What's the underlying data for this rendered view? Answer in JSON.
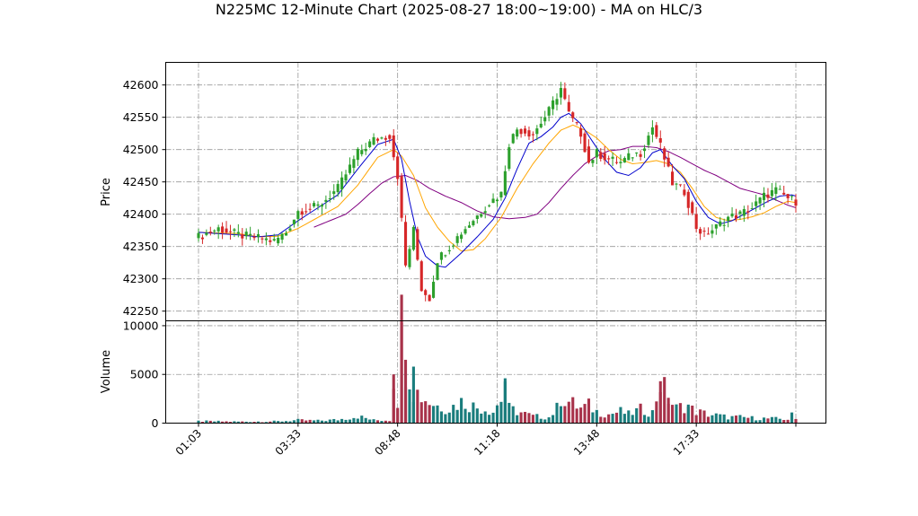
{
  "chart_data": {
    "type": "candlestick",
    "title": "N225MC 12-Minute Chart (2025-08-27 18:00~19:00) - MA on HLC/3",
    "xlabel": "",
    "price_panel": {
      "ylabel": "Price",
      "ylim": [
        42235,
        42635
      ],
      "yticks": [
        42250,
        42300,
        42350,
        42400,
        42450,
        42500,
        42550,
        42600
      ],
      "grid": true
    },
    "volume_panel": {
      "ylabel": "Volume",
      "ylim": [
        0,
        10500
      ],
      "yticks": [
        0,
        5000,
        10000
      ],
      "grid": true
    },
    "xticks": [
      "01:03",
      "03:33",
      "08:48",
      "11:18",
      "13:48",
      "17:33"
    ],
    "xtick_positions": [
      0,
      25,
      50,
      75,
      100,
      125
    ],
    "bar_count": 151,
    "colors": {
      "up": "#2ca02c",
      "down": "#d62728",
      "vol_up": "#1a7d7d",
      "vol_down": "#a8324a",
      "ma_fast": "#0000cc",
      "ma_mid": "#ffa500",
      "ma_slow": "#800080",
      "grid": "#999999"
    },
    "close_anchors": [
      [
        0,
        42365
      ],
      [
        5,
        42378
      ],
      [
        10,
        42368
      ],
      [
        16,
        42362
      ],
      [
        19,
        42358
      ],
      [
        22,
        42372
      ],
      [
        25,
        42405
      ],
      [
        30,
        42412
      ],
      [
        35,
        42440
      ],
      [
        40,
        42495
      ],
      [
        44,
        42515
      ],
      [
        48,
        42522
      ],
      [
        50,
        42460
      ],
      [
        52,
        42320
      ],
      [
        54,
        42375
      ],
      [
        56,
        42285
      ],
      [
        58,
        42270
      ],
      [
        60,
        42330
      ],
      [
        63,
        42350
      ],
      [
        66,
        42372
      ],
      [
        70,
        42398
      ],
      [
        73,
        42418
      ],
      [
        76,
        42432
      ],
      [
        78,
        42510
      ],
      [
        80,
        42532
      ],
      [
        84,
        42524
      ],
      [
        88,
        42560
      ],
      [
        91,
        42595
      ],
      [
        93,
        42555
      ],
      [
        96,
        42525
      ],
      [
        98,
        42480
      ],
      [
        100,
        42495
      ],
      [
        103,
        42485
      ],
      [
        106,
        42480
      ],
      [
        109,
        42492
      ],
      [
        111,
        42495
      ],
      [
        114,
        42535
      ],
      [
        116,
        42505
      ],
      [
        119,
        42448
      ],
      [
        122,
        42435
      ],
      [
        125,
        42380
      ],
      [
        127,
        42368
      ],
      [
        130,
        42380
      ],
      [
        133,
        42395
      ],
      [
        136,
        42400
      ],
      [
        139,
        42410
      ],
      [
        142,
        42428
      ],
      [
        145,
        42437
      ],
      [
        148,
        42425
      ],
      [
        150,
        42420
      ]
    ],
    "ma_fast_anchors": [
      [
        0,
        42372
      ],
      [
        10,
        42368
      ],
      [
        15,
        42365
      ],
      [
        20,
        42368
      ],
      [
        25,
        42390
      ],
      [
        30,
        42410
      ],
      [
        35,
        42430
      ],
      [
        40,
        42470
      ],
      [
        45,
        42508
      ],
      [
        49,
        42516
      ],
      [
        51,
        42485
      ],
      [
        53,
        42420
      ],
      [
        55,
        42365
      ],
      [
        57,
        42335
      ],
      [
        60,
        42320
      ],
      [
        62,
        42318
      ],
      [
        66,
        42340
      ],
      [
        70,
        42365
      ],
      [
        74,
        42392
      ],
      [
        77,
        42425
      ],
      [
        80,
        42470
      ],
      [
        83,
        42510
      ],
      [
        86,
        42520
      ],
      [
        89,
        42535
      ],
      [
        91,
        42550
      ],
      [
        93,
        42556
      ],
      [
        96,
        42540
      ],
      [
        99,
        42512
      ],
      [
        102,
        42485
      ],
      [
        105,
        42465
      ],
      [
        108,
        42460
      ],
      [
        111,
        42472
      ],
      [
        114,
        42495
      ],
      [
        116,
        42500
      ],
      [
        119,
        42475
      ],
      [
        122,
        42455
      ],
      [
        125,
        42420
      ],
      [
        128,
        42395
      ],
      [
        131,
        42385
      ],
      [
        134,
        42390
      ],
      [
        137,
        42400
      ],
      [
        140,
        42410
      ],
      [
        143,
        42420
      ],
      [
        146,
        42428
      ],
      [
        149,
        42430
      ],
      [
        150,
        42428
      ]
    ],
    "ma_mid_anchors": [
      [
        0,
        42372
      ],
      [
        10,
        42370
      ],
      [
        15,
        42365
      ],
      [
        20,
        42366
      ],
      [
        25,
        42378
      ],
      [
        30,
        42395
      ],
      [
        35,
        42412
      ],
      [
        40,
        42445
      ],
      [
        45,
        42488
      ],
      [
        49,
        42500
      ],
      [
        51,
        42490
      ],
      [
        54,
        42460
      ],
      [
        57,
        42410
      ],
      [
        60,
        42380
      ],
      [
        63,
        42358
      ],
      [
        66,
        42343
      ],
      [
        69,
        42345
      ],
      [
        72,
        42362
      ],
      [
        76,
        42395
      ],
      [
        80,
        42440
      ],
      [
        84,
        42478
      ],
      [
        88,
        42510
      ],
      [
        91,
        42530
      ],
      [
        94,
        42538
      ],
      [
        97,
        42530
      ],
      [
        100,
        42518
      ],
      [
        103,
        42500
      ],
      [
        106,
        42485
      ],
      [
        109,
        42478
      ],
      [
        112,
        42480
      ],
      [
        115,
        42483
      ],
      [
        118,
        42478
      ],
      [
        121,
        42465
      ],
      [
        124,
        42440
      ],
      [
        127,
        42412
      ],
      [
        130,
        42395
      ],
      [
        133,
        42390
      ],
      [
        136,
        42392
      ],
      [
        139,
        42396
      ],
      [
        142,
        42402
      ],
      [
        145,
        42412
      ],
      [
        148,
        42420
      ],
      [
        150,
        42418
      ]
    ],
    "ma_slow_anchors": [
      [
        29,
        42380
      ],
      [
        33,
        42390
      ],
      [
        37,
        42400
      ],
      [
        40,
        42415
      ],
      [
        43,
        42432
      ],
      [
        46,
        42448
      ],
      [
        49,
        42458
      ],
      [
        52,
        42460
      ],
      [
        55,
        42452
      ],
      [
        58,
        42440
      ],
      [
        62,
        42428
      ],
      [
        66,
        42418
      ],
      [
        70,
        42405
      ],
      [
        74,
        42396
      ],
      [
        78,
        42393
      ],
      [
        82,
        42395
      ],
      [
        85,
        42400
      ],
      [
        88,
        42418
      ],
      [
        91,
        42440
      ],
      [
        94,
        42460
      ],
      [
        97,
        42478
      ],
      [
        100,
        42490
      ],
      [
        103,
        42498
      ],
      [
        106,
        42500
      ],
      [
        109,
        42505
      ],
      [
        112,
        42505
      ],
      [
        115,
        42503
      ],
      [
        118,
        42497
      ],
      [
        121,
        42488
      ],
      [
        124,
        42478
      ],
      [
        127,
        42468
      ],
      [
        130,
        42460
      ],
      [
        133,
        42450
      ],
      [
        136,
        42440
      ],
      [
        139,
        42435
      ],
      [
        142,
        42430
      ],
      [
        145,
        42422
      ],
      [
        148,
        42414
      ],
      [
        150,
        42410
      ]
    ],
    "volume_anchors": [
      [
        0,
        200
      ],
      [
        10,
        150
      ],
      [
        20,
        180
      ],
      [
        25,
        300
      ],
      [
        30,
        250
      ],
      [
        35,
        350
      ],
      [
        40,
        700
      ],
      [
        44,
        300
      ],
      [
        48,
        300
      ],
      [
        49,
        5000
      ],
      [
        50,
        2500
      ],
      [
        51,
        10300
      ],
      [
        52,
        6500
      ],
      [
        53,
        5500
      ],
      [
        54,
        3500
      ],
      [
        56,
        2800
      ],
      [
        58,
        2200
      ],
      [
        60,
        1800
      ],
      [
        63,
        1500
      ],
      [
        66,
        2200
      ],
      [
        70,
        1600
      ],
      [
        72,
        1500
      ],
      [
        74,
        1200
      ],
      [
        76,
        2500
      ],
      [
        77,
        4500
      ],
      [
        78,
        1500
      ],
      [
        80,
        1200
      ],
      [
        84,
        700
      ],
      [
        88,
        600
      ],
      [
        90,
        1500
      ],
      [
        91,
        2800
      ],
      [
        93,
        2200
      ],
      [
        96,
        1500
      ],
      [
        98,
        1800
      ],
      [
        100,
        1200
      ],
      [
        103,
        900
      ],
      [
        106,
        1200
      ],
      [
        108,
        900
      ],
      [
        111,
        1400
      ],
      [
        114,
        1100
      ],
      [
        116,
        4300
      ],
      [
        118,
        2500
      ],
      [
        120,
        1500
      ],
      [
        122,
        1800
      ],
      [
        125,
        1200
      ],
      [
        128,
        900
      ],
      [
        130,
        800
      ],
      [
        133,
        600
      ],
      [
        136,
        600
      ],
      [
        140,
        500
      ],
      [
        145,
        450
      ],
      [
        148,
        400
      ],
      [
        149,
        800
      ],
      [
        150,
        400
      ]
    ],
    "markers": [
      [
        51,
        10300,
        "down"
      ],
      [
        52,
        6500,
        "down"
      ],
      [
        54,
        5800,
        "up"
      ],
      [
        116,
        4300,
        "down"
      ],
      [
        118,
        2600,
        "down"
      ],
      [
        77,
        4600,
        "up"
      ],
      [
        49,
        5000,
        "down"
      ],
      [
        123,
        1900,
        "up"
      ]
    ]
  }
}
